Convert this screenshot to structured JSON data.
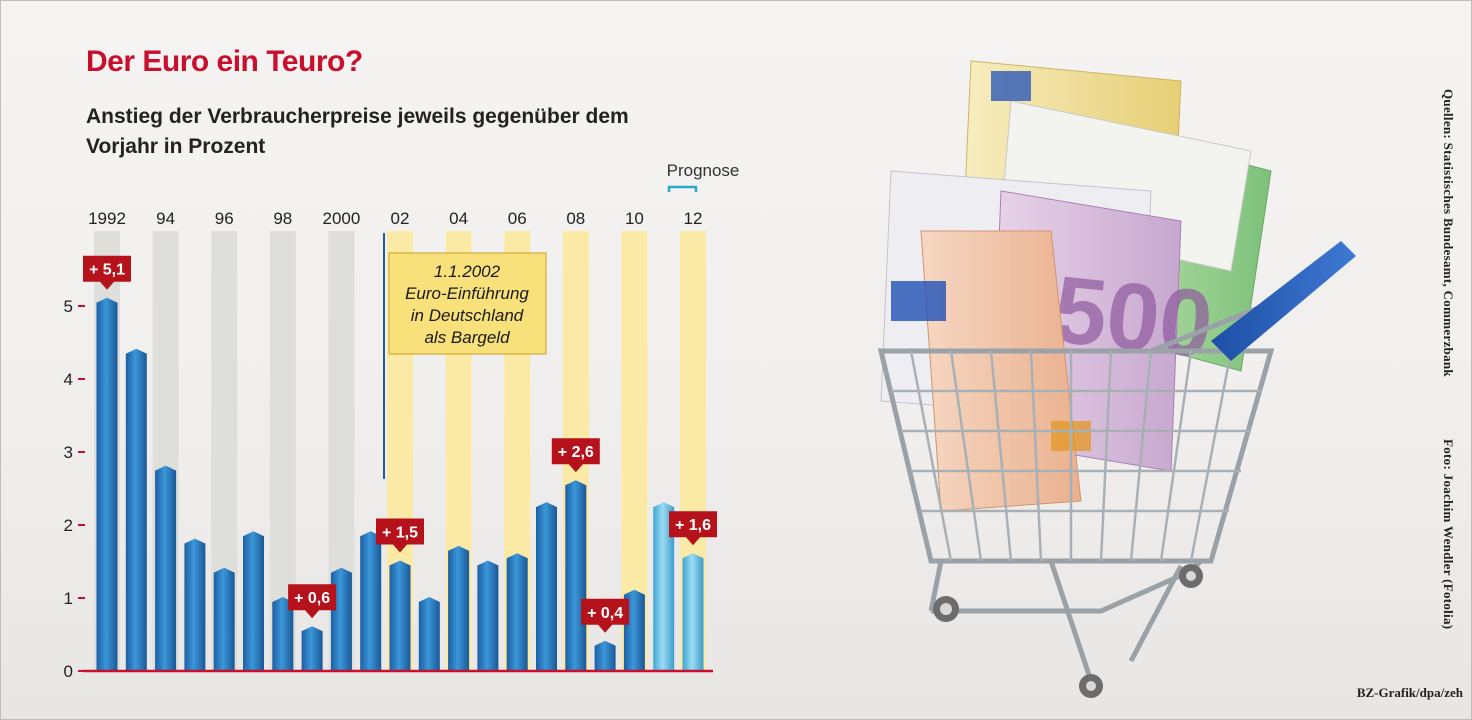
{
  "title": "Der Euro ein Teuro?",
  "subtitle": "Anstieg der Verbraucherpreise jeweils gegenüber dem Vorjahr in Prozent",
  "forecast_label": "Prognose",
  "annotation_lines": [
    "1.1.2002",
    "Euro-Einführung",
    "in Deutschland",
    "als Bargeld"
  ],
  "credits": {
    "sources": "Quellen: Statistisches Bundesamt, Commerzbank",
    "photo": "Foto: Joachim Wendler (Fotolia)",
    "graphic": "BZ-Grafik/dpa/zeh"
  },
  "colors": {
    "title": "#c8102e",
    "bar": "#2f86c9",
    "bar_forecast": "#7fcde8",
    "stripe_grey": "#dededb",
    "stripe_yellow": "#fbeaa6",
    "callout": "#b5121b",
    "annotation_fill": "#f8e07a",
    "baseline": "#c8102e"
  },
  "chart_data": {
    "type": "bar",
    "x": [
      1992,
      1993,
      1994,
      1995,
      1996,
      1997,
      1998,
      1999,
      2000,
      2001,
      2002,
      2003,
      2004,
      2005,
      2006,
      2007,
      2008,
      2009,
      2010,
      2011,
      2012
    ],
    "values": [
      5.1,
      4.4,
      2.8,
      1.8,
      1.4,
      1.9,
      1.0,
      0.6,
      1.4,
      1.9,
      1.5,
      1.0,
      1.7,
      1.5,
      1.6,
      2.3,
      2.6,
      0.4,
      1.1,
      2.3,
      1.6
    ],
    "forecast": [
      false,
      false,
      false,
      false,
      false,
      false,
      false,
      false,
      false,
      false,
      false,
      false,
      false,
      false,
      false,
      false,
      false,
      false,
      false,
      true,
      true
    ],
    "x_tick_labels": [
      "1992",
      "94",
      "96",
      "98",
      "2000",
      "02",
      "04",
      "06",
      "08",
      "10",
      "12"
    ],
    "y_ticks": [
      0,
      1,
      2,
      3,
      4,
      5
    ],
    "ylim": [
      0,
      5.4
    ],
    "value_labels": [
      {
        "year": 1992,
        "label": "+ 5,1"
      },
      {
        "year": 1999,
        "label": "+ 0,6"
      },
      {
        "year": 2002,
        "label": "+ 1,5"
      },
      {
        "year": 2008,
        "label": "+ 2,6"
      },
      {
        "year": 2009,
        "label": "+ 0,4"
      },
      {
        "year": 2012,
        "label": "+ 1,6"
      }
    ],
    "marker_year": 2002,
    "forecast_years": [
      2011,
      2012
    ],
    "xlabel": "",
    "ylabel": "",
    "grid": false
  }
}
